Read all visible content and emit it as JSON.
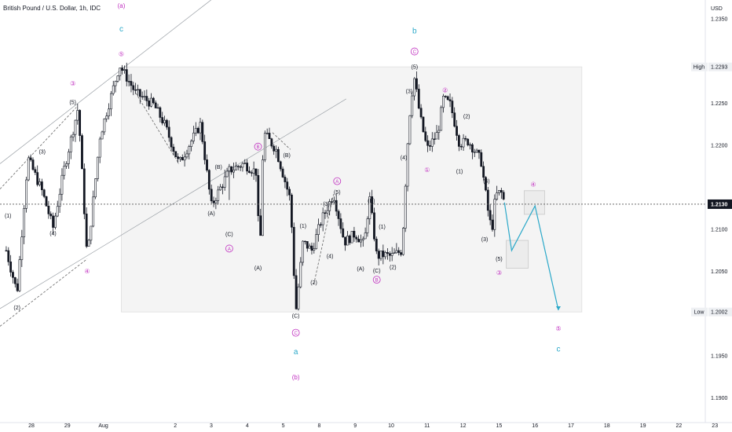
{
  "header": {
    "title": "British Pound / U.S. Dollar, 1h, IDC"
  },
  "price_axis": {
    "currency": "USD",
    "high_label": "High",
    "low_label": "Low"
  },
  "chart_data": {
    "type": "candlestick",
    "ylim": [
      1.188,
      1.2365
    ],
    "y_ticks": [
      1.19,
      1.195,
      1.205,
      1.21,
      1.22,
      1.225,
      1.235
    ],
    "y_tick_labels": [
      "1.1900",
      "1.1950",
      "1.2050",
      "1.2100",
      "1.2200",
      "1.2250",
      "1.2350"
    ],
    "x_ticks": [
      {
        "day": 28,
        "label": "28"
      },
      {
        "day": 29,
        "label": "29"
      },
      {
        "day": 30,
        "label": "Aug"
      },
      {
        "day": 32,
        "label": "2"
      },
      {
        "day": 33,
        "label": "3"
      },
      {
        "day": 34,
        "label": "4"
      },
      {
        "day": 35,
        "label": "5"
      },
      {
        "day": 36,
        "label": "8"
      },
      {
        "day": 37,
        "label": "9"
      },
      {
        "day": 38,
        "label": "10"
      },
      {
        "day": 39,
        "label": "11"
      },
      {
        "day": 40,
        "label": "12"
      },
      {
        "day": 41,
        "label": "15"
      },
      {
        "day": 42,
        "label": "16"
      },
      {
        "day": 43,
        "label": "17"
      },
      {
        "day": 44,
        "label": "18"
      },
      {
        "day": 45,
        "label": "19"
      },
      {
        "day": 46,
        "label": "22"
      },
      {
        "day": 47,
        "label": "23"
      }
    ],
    "high": {
      "value": 1.2293,
      "label": "1.2293"
    },
    "low": {
      "value": 1.2002,
      "label": "1.2002"
    },
    "current": {
      "value": 1.213,
      "label": "1.2130"
    },
    "path": [
      [
        27.3,
        1.2075
      ],
      [
        27.6,
        1.2025
      ],
      [
        27.9,
        1.2185
      ],
      [
        28.3,
        1.2145
      ],
      [
        28.6,
        1.2102
      ],
      [
        28.9,
        1.217
      ],
      [
        29.3,
        1.2245
      ],
      [
        29.55,
        1.2065
      ],
      [
        29.9,
        1.221
      ],
      [
        30.45,
        1.2295
      ],
      [
        30.9,
        1.2262
      ],
      [
        31.4,
        1.2248
      ],
      [
        31.7,
        1.2225
      ],
      [
        32.1,
        1.2178
      ],
      [
        32.7,
        1.2225
      ],
      [
        33.0,
        1.2128
      ],
      [
        33.5,
        1.217
      ],
      [
        33.9,
        1.2178
      ],
      [
        34.25,
        1.2168
      ],
      [
        34.35,
        1.2065
      ],
      [
        34.45,
        1.2215
      ],
      [
        34.8,
        1.2195
      ],
      [
        35.2,
        1.2135
      ],
      [
        35.35,
        1.2002
      ],
      [
        35.55,
        1.2085
      ],
      [
        35.8,
        1.2075
      ],
      [
        36.05,
        1.211
      ],
      [
        36.4,
        1.2142
      ],
      [
        36.7,
        1.2085
      ],
      [
        37.0,
        1.2095
      ],
      [
        37.25,
        1.2082
      ],
      [
        37.4,
        1.2138
      ],
      [
        37.6,
        1.2068
      ],
      [
        37.8,
        1.207
      ],
      [
        38.0,
        1.2068
      ],
      [
        38.3,
        1.2075
      ],
      [
        38.45,
        1.2198
      ],
      [
        38.55,
        1.2255
      ],
      [
        38.65,
        1.228
      ],
      [
        38.8,
        1.2235
      ],
      [
        39.0,
        1.2195
      ],
      [
        39.3,
        1.2215
      ],
      [
        39.45,
        1.2255
      ],
      [
        39.65,
        1.2248
      ],
      [
        39.9,
        1.2202
      ],
      [
        40.15,
        1.2205
      ],
      [
        40.3,
        1.2195
      ],
      [
        40.5,
        1.2182
      ],
      [
        40.7,
        1.212
      ],
      [
        40.8,
        1.2098
      ],
      [
        40.9,
        1.214
      ],
      [
        41.05,
        1.2145
      ],
      [
        41.15,
        1.2132
      ]
    ],
    "projection": [
      [
        41.15,
        1.2132
      ],
      [
        41.35,
        1.2075
      ],
      [
        42.0,
        1.2128
      ],
      [
        42.65,
        1.2004
      ]
    ],
    "wave_labels": [
      {
        "text": "(a)",
        "day": 30.5,
        "price": 1.2363,
        "style": "pink"
      },
      {
        "text": "c",
        "day": 30.5,
        "price": 1.2335,
        "style": "blue"
      },
      {
        "text": "⑤",
        "day": 30.5,
        "price": 1.2306,
        "style": "pink"
      },
      {
        "text": "③",
        "day": 29.15,
        "price": 1.2271,
        "style": "pink"
      },
      {
        "text": "(5)",
        "day": 29.15,
        "price": 1.2249,
        "style": "black"
      },
      {
        "text": "(3)",
        "day": 28.3,
        "price": 1.219,
        "style": "black"
      },
      {
        "text": "(1)",
        "day": 27.35,
        "price": 1.2114,
        "style": "black"
      },
      {
        "text": "(2)",
        "day": 27.6,
        "price": 1.2005,
        "style": "black"
      },
      {
        "text": "(4)",
        "day": 28.6,
        "price": 1.2093,
        "style": "black"
      },
      {
        "text": "④",
        "day": 29.55,
        "price": 1.2048,
        "style": "pink"
      },
      {
        "text": "(B)",
        "day": 33.2,
        "price": 1.2172,
        "style": "black"
      },
      {
        "text": "B",
        "day": 34.3,
        "price": 1.2196,
        "style": "pink_circle"
      },
      {
        "text": "(A)",
        "day": 33.0,
        "price": 1.2117,
        "style": "black"
      },
      {
        "text": "(C)",
        "day": 33.5,
        "price": 1.2092,
        "style": "black"
      },
      {
        "text": "A",
        "day": 33.5,
        "price": 1.2075,
        "style": "pink_circle"
      },
      {
        "text": "(A)",
        "day": 34.3,
        "price": 1.2052,
        "style": "black"
      },
      {
        "text": "(B)",
        "day": 35.1,
        "price": 1.2186,
        "style": "black"
      },
      {
        "text": "(C)",
        "day": 35.35,
        "price": 1.1995,
        "style": "black"
      },
      {
        "text": "C",
        "day": 35.35,
        "price": 1.1975,
        "style": "pink_circle"
      },
      {
        "text": "a",
        "day": 35.35,
        "price": 1.1952,
        "style": "blue"
      },
      {
        "text": "(b)",
        "day": 35.35,
        "price": 1.1922,
        "style": "pink"
      },
      {
        "text": "(1)",
        "day": 35.55,
        "price": 1.2102,
        "style": "black"
      },
      {
        "text": "(2)",
        "day": 35.85,
        "price": 1.2035,
        "style": "black"
      },
      {
        "text": "(3)",
        "day": 36.2,
        "price": 1.2128,
        "style": "black"
      },
      {
        "text": "(4)",
        "day": 36.3,
        "price": 1.2066,
        "style": "black"
      },
      {
        "text": "(5)",
        "day": 36.5,
        "price": 1.2142,
        "style": "black"
      },
      {
        "text": "A",
        "day": 36.5,
        "price": 1.2155,
        "style": "pink_circle"
      },
      {
        "text": "(B)",
        "day": 37.45,
        "price": 1.2132,
        "style": "black"
      },
      {
        "text": "(1)",
        "day": 37.75,
        "price": 1.2101,
        "style": "black"
      },
      {
        "text": "(A)",
        "day": 37.15,
        "price": 1.2051,
        "style": "black"
      },
      {
        "text": "(C)",
        "day": 37.6,
        "price": 1.2049,
        "style": "black"
      },
      {
        "text": "B",
        "day": 37.6,
        "price": 1.2038,
        "style": "pink_circle"
      },
      {
        "text": "(2)",
        "day": 38.05,
        "price": 1.2053,
        "style": "black"
      },
      {
        "text": "(4)",
        "day": 38.35,
        "price": 1.2183,
        "style": "black"
      },
      {
        "text": "(3)",
        "day": 38.5,
        "price": 1.2262,
        "style": "black"
      },
      {
        "text": "(5)",
        "day": 38.65,
        "price": 1.2291,
        "style": "black"
      },
      {
        "text": "C",
        "day": 38.65,
        "price": 1.2309,
        "style": "pink_circle"
      },
      {
        "text": "b",
        "day": 38.65,
        "price": 1.2333,
        "style": "blue"
      },
      {
        "text": "①",
        "day": 39.0,
        "price": 1.2168,
        "style": "pink"
      },
      {
        "text": "②",
        "day": 39.5,
        "price": 1.2263,
        "style": "pink"
      },
      {
        "text": "(2)",
        "day": 40.1,
        "price": 1.2232,
        "style": "black"
      },
      {
        "text": "(1)",
        "day": 39.9,
        "price": 1.2167,
        "style": "black"
      },
      {
        "text": "(4)",
        "day": 40.65,
        "price": 1.2155,
        "style": "black"
      },
      {
        "text": "(3)",
        "day": 40.6,
        "price": 1.2086,
        "style": "black"
      },
      {
        "text": "(5)",
        "day": 41.0,
        "price": 1.2063,
        "style": "black"
      },
      {
        "text": "③",
        "day": 41.0,
        "price": 1.2046,
        "style": "pink"
      },
      {
        "text": "④",
        "day": 41.95,
        "price": 1.2151,
        "style": "pink"
      },
      {
        "text": "⑤",
        "day": 42.65,
        "price": 1.198,
        "style": "pink"
      },
      {
        "text": "c",
        "day": 42.65,
        "price": 1.1955,
        "style": "blue"
      }
    ],
    "colors": {
      "candles": "#131722",
      "projection": "#2aa8c9",
      "pink": "#c02fc0",
      "blue": "#2aa8c9",
      "box": "#f2f2f2",
      "grid": "#e6e6e6"
    }
  }
}
